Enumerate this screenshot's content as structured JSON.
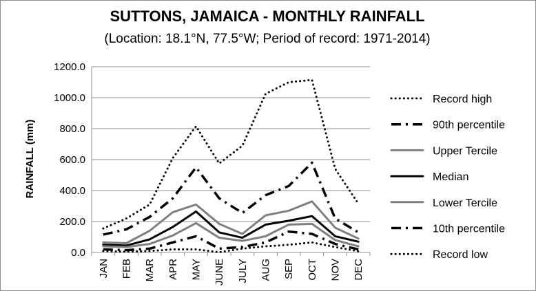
{
  "chart_data": {
    "type": "line",
    "title": "SUTTONS, JAMAICA - MONTHLY RAINFALL",
    "subtitle": "(Location: 18.1°N, 77.5°W; Period of record: 1971-2014)",
    "xlabel": "",
    "ylabel": "RAINFALL (mm)",
    "ylim": [
      0,
      1200
    ],
    "yticks": [
      "0.0",
      "200.0",
      "400.0",
      "600.0",
      "800.0",
      "1000.0",
      "1200.0"
    ],
    "categories": [
      "JAN",
      "FEB",
      "MAR",
      "APR",
      "MAY",
      "JUNE",
      "JULY",
      "AUG",
      "SEP",
      "OCT",
      "NOV",
      "DEC"
    ],
    "grid": "horizontal",
    "legend_position": "right",
    "series": [
      {
        "name": "Record high",
        "style": "dotted",
        "color": "#000000",
        "values": [
          155,
          220,
          310,
          610,
          815,
          575,
          690,
          1025,
          1100,
          1115,
          540,
          315
        ]
      },
      {
        "name": "90th percentile",
        "style": "dashdot",
        "color": "#000000",
        "values": [
          115,
          150,
          230,
          350,
          550,
          350,
          255,
          370,
          430,
          580,
          220,
          130
        ]
      },
      {
        "name": "Upper Tercile",
        "style": "solid",
        "color": "#7f7f7f",
        "values": [
          65,
          60,
          140,
          260,
          310,
          185,
          120,
          240,
          270,
          330,
          160,
          90
        ]
      },
      {
        "name": "Median",
        "style": "solid",
        "color": "#000000",
        "values": [
          50,
          45,
          85,
          165,
          265,
          130,
          95,
          180,
          205,
          235,
          105,
          70
        ]
      },
      {
        "name": "Lower Tercile",
        "style": "solid",
        "color": "#7f7f7f",
        "values": [
          40,
          35,
          55,
          110,
          190,
          95,
          75,
          105,
          180,
          185,
          80,
          40
        ]
      },
      {
        "name": "10th percentile",
        "style": "dashdot",
        "color": "#000000",
        "values": [
          20,
          15,
          25,
          65,
          105,
          25,
          35,
          65,
          135,
          120,
          55,
          20
        ]
      },
      {
        "name": "Record low",
        "style": "dotted",
        "color": "#000000",
        "values": [
          10,
          5,
          10,
          20,
          20,
          2,
          25,
          40,
          50,
          65,
          35,
          8
        ]
      }
    ]
  }
}
